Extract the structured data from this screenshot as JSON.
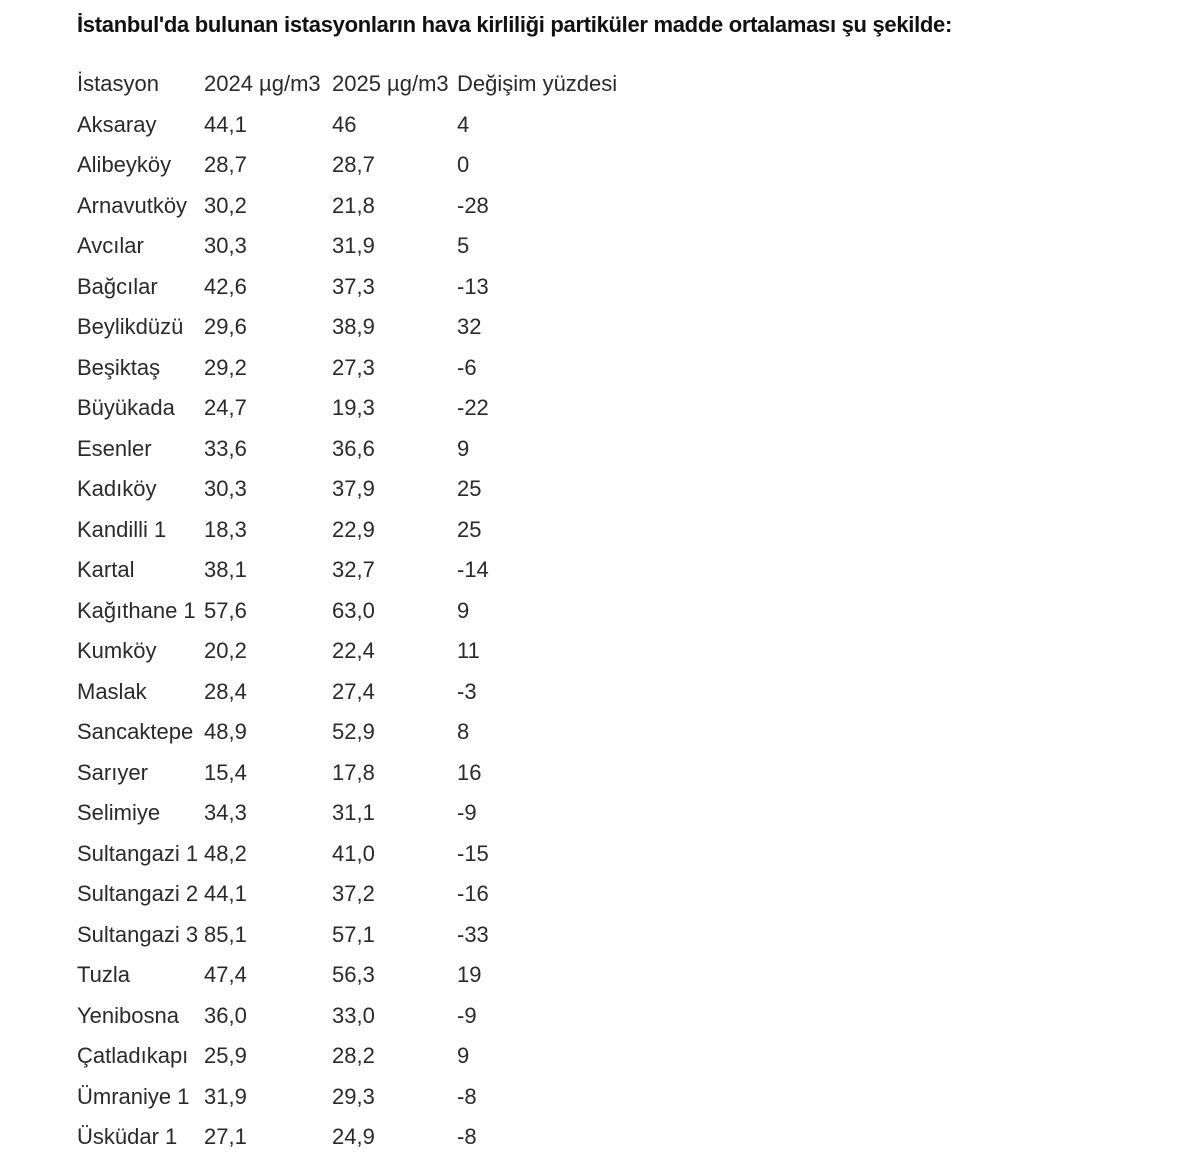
{
  "title": "İstanbul'da bulunan istasyonların hava kirliliği partiküler madde ortalaması şu şekilde:",
  "table": {
    "headers": [
      "İstasyon",
      "2024 µg/m3",
      "2025 µg/m3",
      "Değişim yüzdesi"
    ],
    "rows": [
      [
        "Aksaray",
        "44,1",
        "46",
        "4"
      ],
      [
        "Alibeyköy",
        "28,7",
        "28,7",
        "0"
      ],
      [
        "Arnavutköy",
        "30,2",
        "21,8",
        "-28"
      ],
      [
        "Avcılar",
        "30,3",
        "31,9",
        "5"
      ],
      [
        "Bağcılar",
        "42,6",
        "37,3",
        "-13"
      ],
      [
        "Beylikdüzü",
        "29,6",
        "38,9",
        "32"
      ],
      [
        "Beşiktaş",
        "29,2",
        "27,3",
        "-6"
      ],
      [
        "Büyükada",
        "24,7",
        "19,3",
        "-22"
      ],
      [
        "Esenler",
        "33,6",
        "36,6",
        "9"
      ],
      [
        "Kadıköy",
        "30,3",
        "37,9",
        "25"
      ],
      [
        "Kandilli 1",
        "18,3",
        "22,9",
        "25"
      ],
      [
        "Kartal",
        "38,1",
        "32,7",
        "-14"
      ],
      [
        "Kağıthane 1",
        "57,6",
        "63,0",
        "9"
      ],
      [
        "Kumköy",
        "20,2",
        "22,4",
        "11"
      ],
      [
        "Maslak",
        "28,4",
        "27,4",
        "-3"
      ],
      [
        "Sancaktepe",
        "48,9",
        "52,9",
        "8"
      ],
      [
        "Sarıyer",
        "15,4",
        "17,8",
        "16"
      ],
      [
        "Selimiye",
        "34,3",
        "31,1",
        "-9"
      ],
      [
        "Sultangazi 1",
        "48,2",
        "41,0",
        "-15"
      ],
      [
        "Sultangazi 2",
        "44,1",
        "37,2",
        "-16"
      ],
      [
        "Sultangazi 3",
        "85,1",
        "57,1",
        "-33"
      ],
      [
        "Tuzla",
        "47,4",
        "56,3",
        "19"
      ],
      [
        "Yenibosna",
        "36,0",
        "33,0",
        "-9"
      ],
      [
        "Çatladıkapı",
        "25,9",
        "28,2",
        "9"
      ],
      [
        "Ümraniye 1",
        "31,9",
        "29,3",
        "-8"
      ],
      [
        "Üsküdar 1",
        "27,1",
        "24,9",
        "-8"
      ]
    ]
  }
}
